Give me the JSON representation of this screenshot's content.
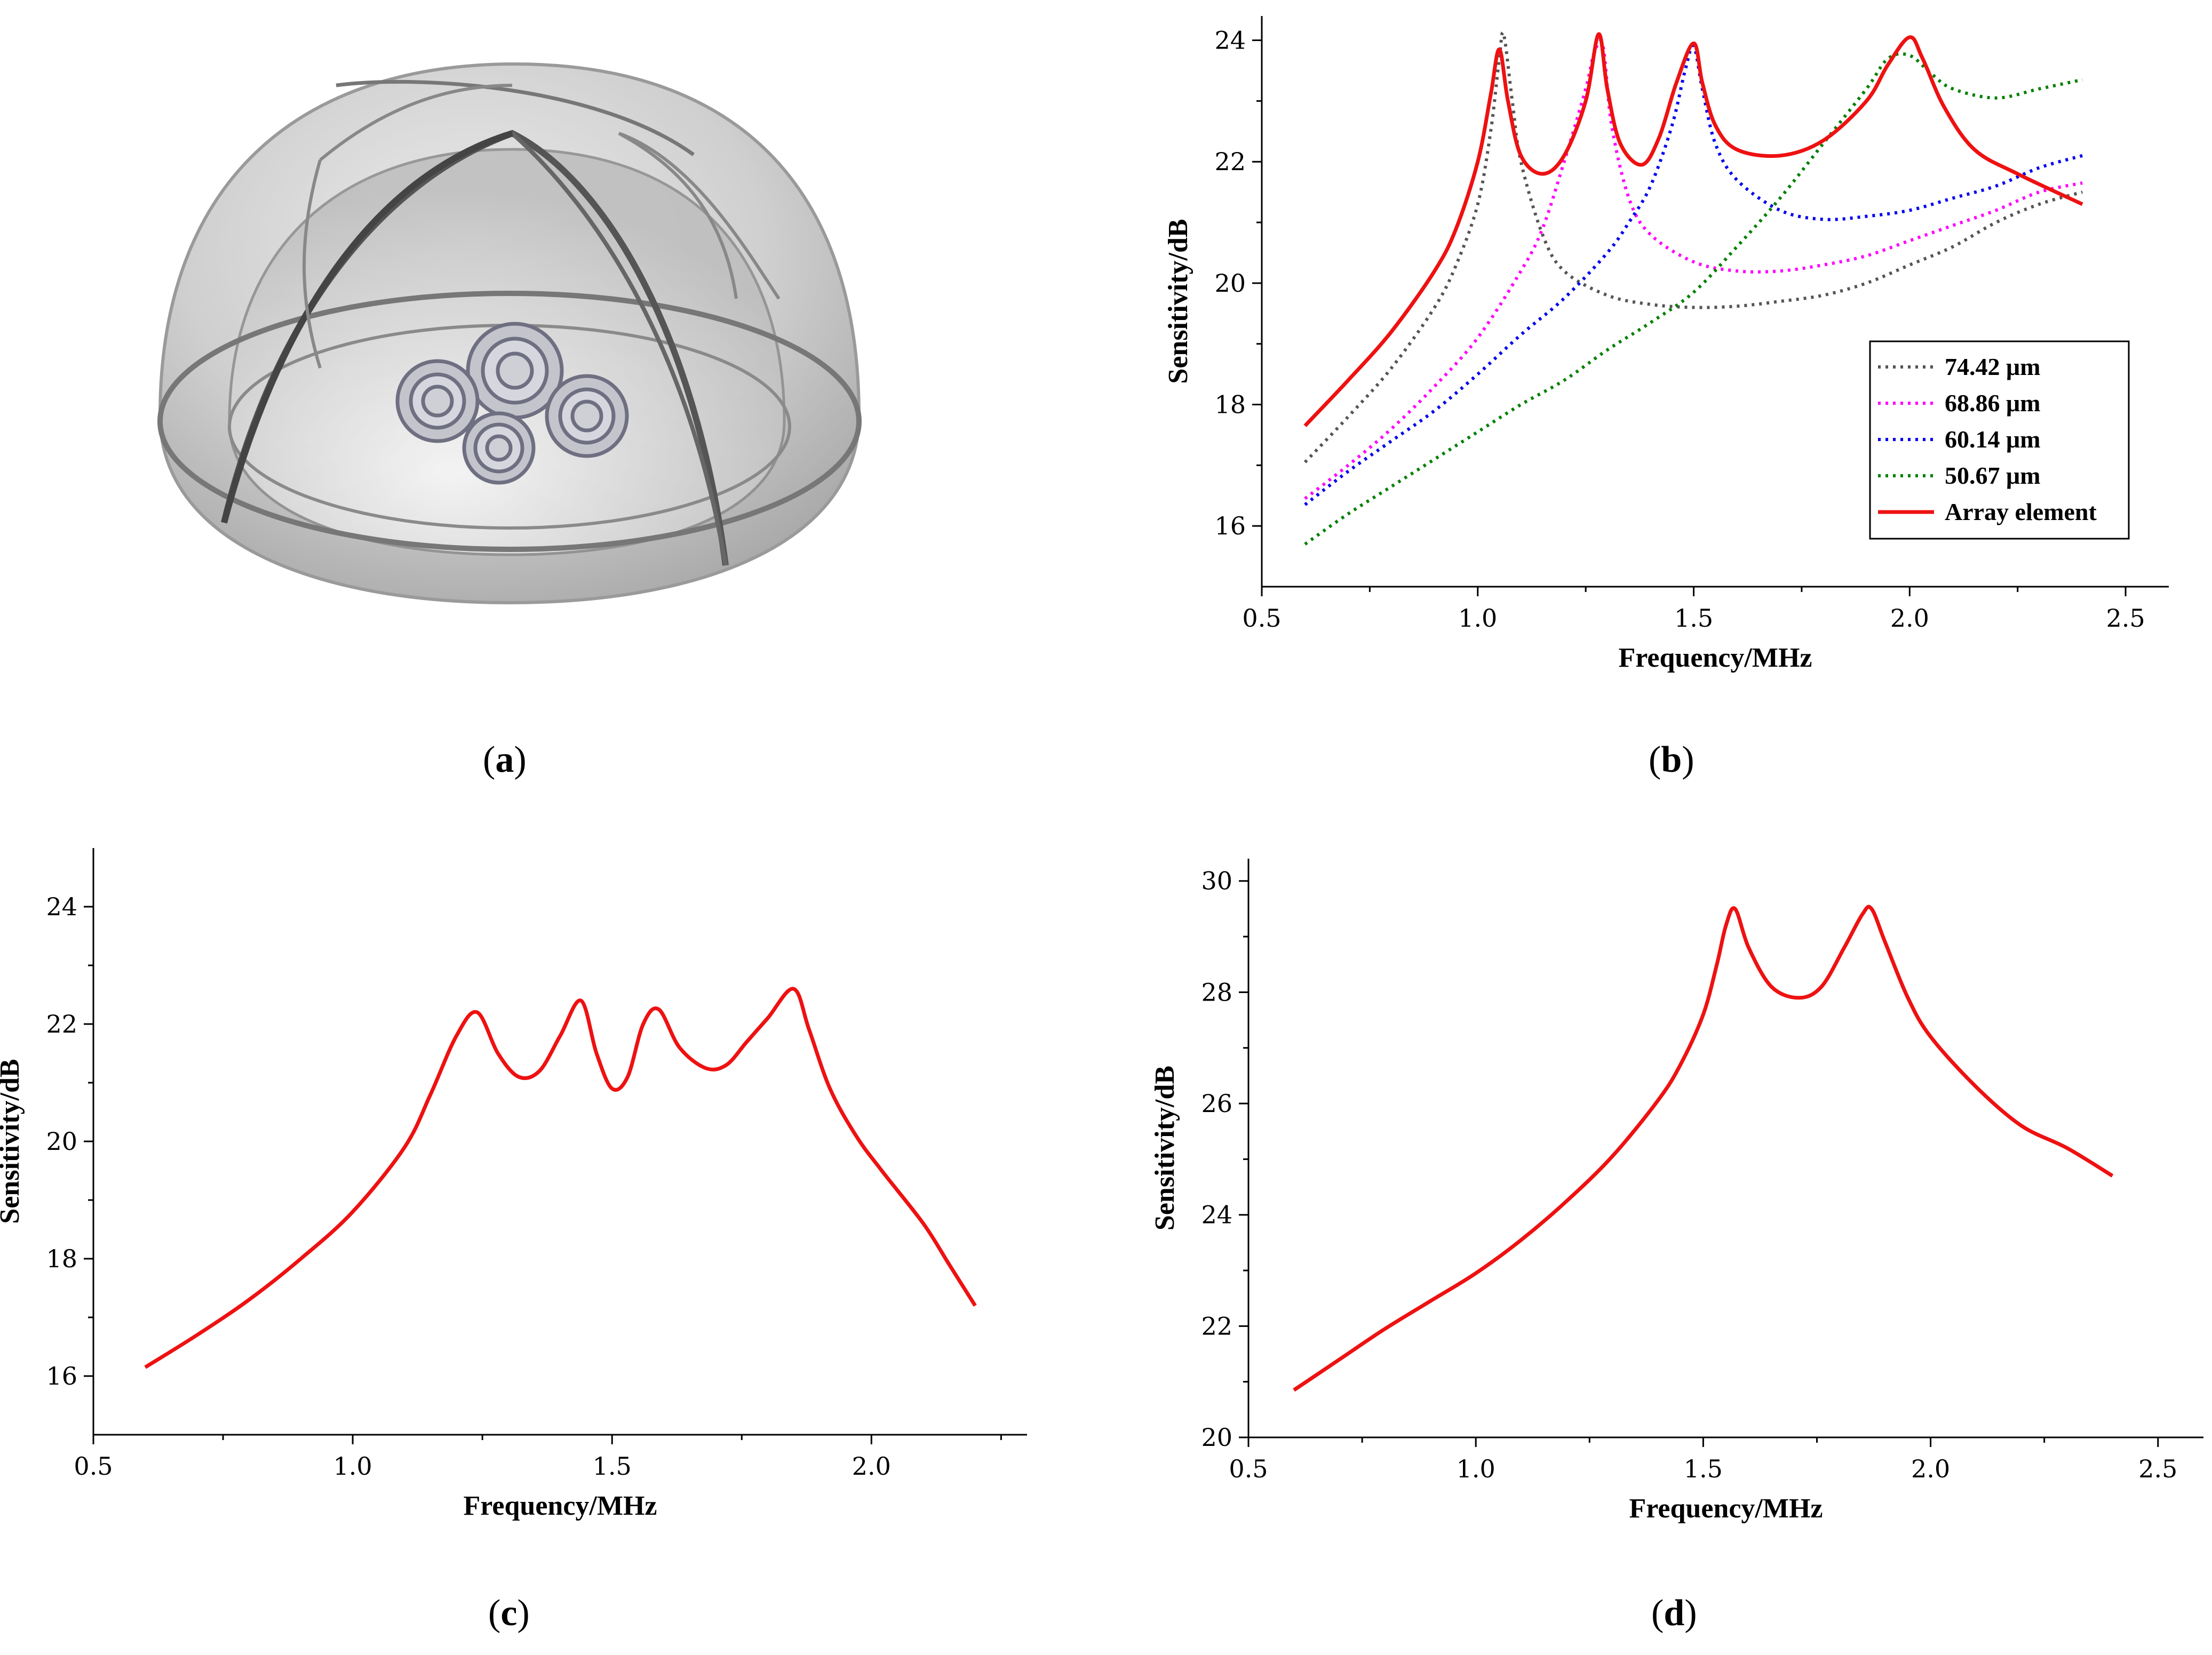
{
  "captions": {
    "a": "a",
    "b": "b",
    "c": "c",
    "d": "d"
  },
  "colors": {
    "gray": "#555555",
    "magenta": "#ff00ff",
    "blue": "#0000ee",
    "green": "#008000",
    "red": "#ee1111"
  },
  "panel_a": {
    "description_icon": "hemisphere-array-icon"
  },
  "chart_data": [
    {
      "panel": "b",
      "type": "line",
      "xlabel": "Frequency/MHz",
      "ylabel": "Sensitivity/dB",
      "xlim": [
        0.5,
        2.6
      ],
      "ylim": [
        15,
        24.4
      ],
      "xticks": [
        "0.5",
        "1.0",
        "1.5",
        "2.0",
        "2.5"
      ],
      "yticks": [
        "16",
        "18",
        "20",
        "22",
        "24"
      ],
      "legend_position": "bottom-right",
      "series": [
        {
          "name": "74.42 μm",
          "style": "dotted",
          "color": "#555555",
          "x": [
            0.6,
            0.7,
            0.8,
            0.9,
            0.95,
            1.0,
            1.03,
            1.05,
            1.06,
            1.08,
            1.1,
            1.15,
            1.2,
            1.3,
            1.4,
            1.5,
            1.6,
            1.7,
            1.8,
            1.9,
            2.0,
            2.1,
            2.2,
            2.3,
            2.4
          ],
          "y": [
            17.05,
            17.8,
            18.6,
            19.6,
            20.3,
            21.3,
            22.5,
            23.7,
            24.1,
            23.0,
            22.0,
            20.8,
            20.2,
            19.8,
            19.65,
            19.6,
            19.62,
            19.7,
            19.8,
            20.0,
            20.3,
            20.6,
            21.0,
            21.3,
            21.5
          ]
        },
        {
          "name": "68.86 μm",
          "style": "dotted",
          "color": "#ff00ff",
          "x": [
            0.6,
            0.7,
            0.8,
            0.9,
            1.0,
            1.1,
            1.15,
            1.2,
            1.25,
            1.27,
            1.29,
            1.31,
            1.35,
            1.4,
            1.5,
            1.6,
            1.7,
            1.8,
            1.9,
            2.0,
            2.1,
            2.2,
            2.3,
            2.4
          ],
          "y": [
            16.45,
            17.0,
            17.6,
            18.3,
            19.1,
            20.2,
            20.9,
            22.0,
            23.2,
            23.8,
            23.9,
            22.6,
            21.4,
            20.8,
            20.35,
            20.2,
            20.2,
            20.3,
            20.45,
            20.7,
            20.95,
            21.2,
            21.5,
            21.65
          ]
        },
        {
          "name": "60.14 μm",
          "style": "dotted",
          "color": "#0000ee",
          "x": [
            0.6,
            0.7,
            0.8,
            0.9,
            1.0,
            1.1,
            1.2,
            1.3,
            1.35,
            1.4,
            1.45,
            1.48,
            1.5,
            1.52,
            1.55,
            1.6,
            1.7,
            1.8,
            1.9,
            2.0,
            2.1,
            2.2,
            2.3,
            2.4
          ],
          "y": [
            16.35,
            16.9,
            17.4,
            17.9,
            18.5,
            19.15,
            19.75,
            20.5,
            21.0,
            21.6,
            22.6,
            23.5,
            23.9,
            23.2,
            22.3,
            21.7,
            21.2,
            21.05,
            21.1,
            21.2,
            21.4,
            21.6,
            21.9,
            22.1
          ]
        },
        {
          "name": "50.67 μm",
          "style": "dotted",
          "color": "#008000",
          "x": [
            0.6,
            0.7,
            0.8,
            0.9,
            1.0,
            1.1,
            1.2,
            1.3,
            1.4,
            1.5,
            1.6,
            1.7,
            1.8,
            1.9,
            1.95,
            2.0,
            2.05,
            2.1,
            2.2,
            2.3,
            2.4
          ],
          "y": [
            15.7,
            16.2,
            16.65,
            17.1,
            17.55,
            18.0,
            18.4,
            18.9,
            19.35,
            19.85,
            20.6,
            21.4,
            22.3,
            23.2,
            23.7,
            23.75,
            23.45,
            23.2,
            23.05,
            23.2,
            23.35
          ]
        },
        {
          "name": "Array element",
          "style": "solid",
          "color": "#ee1111",
          "x": [
            0.6,
            0.7,
            0.8,
            0.9,
            0.95,
            1.0,
            1.03,
            1.05,
            1.07,
            1.1,
            1.15,
            1.2,
            1.25,
            1.28,
            1.3,
            1.33,
            1.38,
            1.42,
            1.46,
            1.5,
            1.52,
            1.55,
            1.6,
            1.7,
            1.8,
            1.9,
            1.95,
            2.0,
            2.03,
            2.08,
            2.15,
            2.25,
            2.4
          ],
          "y": [
            17.65,
            18.4,
            19.2,
            20.2,
            20.9,
            22.0,
            23.1,
            23.85,
            23.0,
            22.1,
            21.8,
            22.1,
            23.0,
            24.1,
            23.2,
            22.3,
            21.95,
            22.4,
            23.3,
            23.95,
            23.3,
            22.6,
            22.2,
            22.1,
            22.35,
            23.0,
            23.6,
            24.05,
            23.7,
            22.9,
            22.2,
            21.8,
            21.3
          ]
        }
      ]
    },
    {
      "panel": "c",
      "type": "line",
      "xlabel": "Frequency/MHz",
      "ylabel": "Sensitivity/dB",
      "xlim": [
        0.5,
        2.3
      ],
      "ylim": [
        15,
        25
      ],
      "xticks": [
        "0.5",
        "1.0",
        "1.5",
        "2.0"
      ],
      "yticks": [
        "16",
        "18",
        "20",
        "22",
        "24"
      ],
      "series": [
        {
          "style": "solid",
          "color": "#ee1111",
          "x": [
            0.6,
            0.7,
            0.8,
            0.9,
            1.0,
            1.1,
            1.15,
            1.2,
            1.24,
            1.28,
            1.32,
            1.36,
            1.4,
            1.44,
            1.47,
            1.5,
            1.53,
            1.56,
            1.59,
            1.63,
            1.68,
            1.72,
            1.76,
            1.8,
            1.85,
            1.88,
            1.92,
            1.97,
            2.02,
            2.1,
            2.15,
            2.2
          ],
          "y": [
            16.15,
            16.7,
            17.3,
            18.0,
            18.8,
            19.9,
            20.8,
            21.8,
            22.2,
            21.5,
            21.1,
            21.2,
            21.8,
            22.4,
            21.5,
            20.9,
            21.1,
            22.0,
            22.25,
            21.6,
            21.25,
            21.3,
            21.7,
            22.1,
            22.6,
            21.9,
            20.9,
            20.1,
            19.5,
            18.6,
            17.9,
            17.2
          ]
        }
      ]
    },
    {
      "panel": "d",
      "type": "line",
      "xlabel": "Frequency/MHz",
      "ylabel": "Sensitivity/dB",
      "xlim": [
        0.5,
        2.6
      ],
      "ylim": [
        20,
        30.4
      ],
      "xticks": [
        "0.5",
        "1.0",
        "1.5",
        "2.0",
        "2.5"
      ],
      "yticks": [
        "20",
        "22",
        "24",
        "26",
        "28",
        "30"
      ],
      "series": [
        {
          "style": "solid",
          "color": "#ee1111",
          "x": [
            0.6,
            0.7,
            0.8,
            0.9,
            1.0,
            1.1,
            1.2,
            1.3,
            1.4,
            1.45,
            1.5,
            1.53,
            1.55,
            1.57,
            1.6,
            1.65,
            1.71,
            1.76,
            1.81,
            1.85,
            1.87,
            1.9,
            1.95,
            2.0,
            2.1,
            2.2,
            2.3,
            2.4
          ],
          "y": [
            20.85,
            21.4,
            21.95,
            22.45,
            22.95,
            23.55,
            24.25,
            25.05,
            26.05,
            26.7,
            27.6,
            28.5,
            29.2,
            29.5,
            28.8,
            28.1,
            27.9,
            28.1,
            28.8,
            29.4,
            29.5,
            28.9,
            27.9,
            27.2,
            26.3,
            25.6,
            25.2,
            24.7
          ]
        }
      ]
    }
  ]
}
